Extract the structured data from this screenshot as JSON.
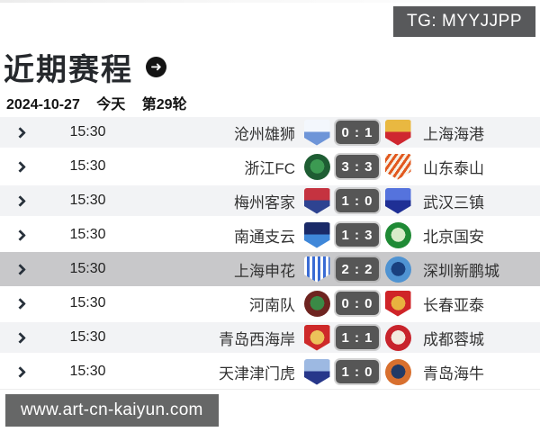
{
  "badges": {
    "tg_label": "TG: MYYJJPP",
    "site_label": "www.art-cn-kaiyun.com"
  },
  "header": {
    "title": "近期赛程",
    "arrow_icon": "arrow-right-circle",
    "arrow_glyph": "➜"
  },
  "date_bar": {
    "date": "2024-10-27",
    "day_label": "今天",
    "round_label": "第29轮"
  },
  "colors": {
    "badge_bg": "#58595b",
    "row_alt_bg": "#f2f3f5",
    "row_selected_bg": "#c8c8ca",
    "score_bg": "#565656",
    "chevron": "#29323c"
  },
  "matches": [
    {
      "time": "15:30",
      "home": {
        "name": "沧州雄狮",
        "logo": {
          "shape": "shield",
          "pattern": "split",
          "c1": "#f3f7fd",
          "c2": "#6e95d8"
        }
      },
      "score": {
        "home": 0,
        "away": 1
      },
      "away": {
        "name": "上海海港",
        "logo": {
          "shape": "shield",
          "pattern": "split",
          "c1": "#e9b841",
          "c2": "#cf2730"
        }
      },
      "highlighted": false
    },
    {
      "time": "15:30",
      "home": {
        "name": "浙江FC",
        "logo": {
          "shape": "circle",
          "pattern": "ring",
          "c1": "#3c9a52",
          "c2": "#1e5d33"
        }
      },
      "score": {
        "home": 3,
        "away": 3
      },
      "away": {
        "name": "山东泰山",
        "logo": {
          "shape": "shield",
          "pattern": "stripes-d",
          "c1": "#f6f2e8",
          "c2": "#e2581e"
        }
      },
      "highlighted": false
    },
    {
      "time": "15:30",
      "home": {
        "name": "梅州客家",
        "logo": {
          "shape": "shield",
          "pattern": "split",
          "c1": "#c53340",
          "c2": "#2e4391"
        }
      },
      "score": {
        "home": 1,
        "away": 0
      },
      "away": {
        "name": "武汉三镇",
        "logo": {
          "shape": "shield",
          "pattern": "split",
          "c1": "#5573dd",
          "c2": "#1f2f95"
        }
      },
      "highlighted": false
    },
    {
      "time": "15:30",
      "home": {
        "name": "南通支云",
        "logo": {
          "shape": "shield",
          "pattern": "split",
          "c1": "#1a2a68",
          "c2": "#3f87d9"
        }
      },
      "score": {
        "home": 1,
        "away": 3
      },
      "away": {
        "name": "北京国安",
        "logo": {
          "shape": "circle",
          "pattern": "ring",
          "c1": "#d8ecc9",
          "c2": "#1f8a35"
        }
      },
      "highlighted": false
    },
    {
      "time": "15:30",
      "home": {
        "name": "上海申花",
        "logo": {
          "shape": "shield",
          "pattern": "stripes-v",
          "c1": "#ffffff",
          "c2": "#3a6cd4"
        }
      },
      "score": {
        "home": 2,
        "away": 2
      },
      "away": {
        "name": "深圳新鹏城",
        "logo": {
          "shape": "circle",
          "pattern": "ring",
          "c1": "#19407f",
          "c2": "#4f93d2"
        }
      },
      "highlighted": true
    },
    {
      "time": "15:30",
      "home": {
        "name": "河南队",
        "logo": {
          "shape": "circle",
          "pattern": "ring",
          "c1": "#3a8a46",
          "c2": "#6e2420"
        }
      },
      "score": {
        "home": 0,
        "away": 0
      },
      "away": {
        "name": "长春亚泰",
        "logo": {
          "shape": "shield",
          "pattern": "ring",
          "c1": "#e8b23f",
          "c2": "#cf2428"
        }
      },
      "highlighted": false
    },
    {
      "time": "15:30",
      "home": {
        "name": "青岛西海岸",
        "logo": {
          "shape": "shield",
          "pattern": "ring",
          "c1": "#ecc25a",
          "c2": "#ce2a2a"
        }
      },
      "score": {
        "home": 1,
        "away": 1
      },
      "away": {
        "name": "成都蓉城",
        "logo": {
          "shape": "circle",
          "pattern": "ring",
          "c1": "#f3eade",
          "c2": "#c8242c"
        }
      },
      "highlighted": false
    },
    {
      "time": "15:30",
      "home": {
        "name": "天津津门虎",
        "logo": {
          "shape": "shield",
          "pattern": "split",
          "c1": "#9db9e2",
          "c2": "#27378a"
        }
      },
      "score": {
        "home": 1,
        "away": 0
      },
      "away": {
        "name": "青岛海牛",
        "logo": {
          "shape": "circle",
          "pattern": "ring",
          "c1": "#223a66",
          "c2": "#d8702f"
        }
      },
      "highlighted": false
    }
  ]
}
